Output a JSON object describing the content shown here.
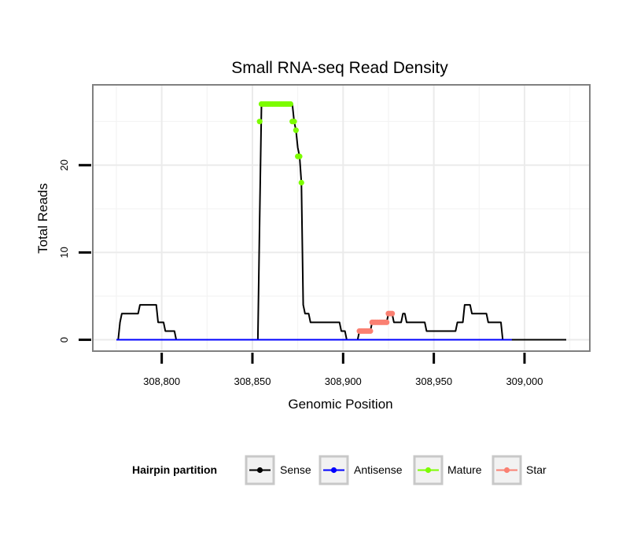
{
  "chart_data": {
    "type": "line",
    "title": "Small RNA-seq Read Density",
    "xlabel": "Genomic Position",
    "ylabel": "Total Reads",
    "xlim": [
      308762,
      309036
    ],
    "ylim": [
      -1.3,
      29.2
    ],
    "x_ticks": [
      308800,
      308850,
      308900,
      308950,
      309000
    ],
    "x_tick_labels": [
      "308,800",
      "308,850",
      "308,900",
      "308,950",
      "309,000"
    ],
    "y_ticks": [
      0,
      10,
      20
    ],
    "y_tick_labels": [
      "0",
      "10",
      "20"
    ],
    "grid": true,
    "legend_position": "bottom",
    "legend": {
      "title": "Hairpin partition",
      "entries": [
        {
          "label": "Sense",
          "color": "#000000"
        },
        {
          "label": "Antisense",
          "color": "#0000ff"
        },
        {
          "label": "Mature",
          "color": "#7cfc00"
        },
        {
          "label": "Star",
          "color": "#fa8072"
        }
      ]
    },
    "series": [
      {
        "name": "Sense",
        "color": "#000000",
        "points": [
          [
            308775,
            0
          ],
          [
            308776,
            0
          ],
          [
            308777,
            2
          ],
          [
            308778,
            3
          ],
          [
            308787,
            3
          ],
          [
            308788,
            4
          ],
          [
            308797,
            4
          ],
          [
            308798,
            2
          ],
          [
            308801,
            2
          ],
          [
            308802,
            1
          ],
          [
            308807,
            1
          ],
          [
            308808,
            0
          ],
          [
            308853,
            0
          ],
          [
            308854,
            14
          ],
          [
            308855,
            27
          ],
          [
            308872,
            27
          ],
          [
            308873,
            25
          ],
          [
            308874,
            24
          ],
          [
            308875,
            22
          ],
          [
            308876,
            21
          ],
          [
            308877,
            18
          ],
          [
            308878,
            4
          ],
          [
            308879,
            3
          ],
          [
            308881,
            3
          ],
          [
            308882,
            2
          ],
          [
            308898,
            2
          ],
          [
            308899,
            1
          ],
          [
            308901,
            1
          ],
          [
            308902,
            0
          ],
          [
            308908,
            0
          ],
          [
            308909,
            1
          ],
          [
            308915,
            1
          ],
          [
            308916,
            2
          ],
          [
            308924,
            2
          ],
          [
            308925,
            3
          ],
          [
            308927,
            3
          ],
          [
            308928,
            2
          ],
          [
            308932,
            2
          ],
          [
            308933,
            3
          ],
          [
            308934,
            3
          ],
          [
            308935,
            2
          ],
          [
            308945,
            2
          ],
          [
            308946,
            1
          ],
          [
            308962,
            1
          ],
          [
            308963,
            2
          ],
          [
            308966,
            2
          ],
          [
            308967,
            4
          ],
          [
            308970,
            4
          ],
          [
            308971,
            3
          ],
          [
            308979,
            3
          ],
          [
            308980,
            2
          ],
          [
            308987,
            2
          ],
          [
            308988,
            0
          ],
          [
            309023,
            0
          ]
        ]
      },
      {
        "name": "Antisense",
        "color": "#0000ff",
        "points": [
          [
            308775,
            0
          ],
          [
            308993,
            0
          ]
        ]
      },
      {
        "name": "Mature",
        "color": "#7cfc00",
        "points": [
          [
            308854,
            25
          ],
          [
            308855,
            27
          ],
          [
            308856,
            27
          ],
          [
            308857,
            27
          ],
          [
            308858,
            27
          ],
          [
            308859,
            27
          ],
          [
            308860,
            27
          ],
          [
            308861,
            27
          ],
          [
            308862,
            27
          ],
          [
            308863,
            27
          ],
          [
            308864,
            27
          ],
          [
            308865,
            27
          ],
          [
            308866,
            27
          ],
          [
            308867,
            27
          ],
          [
            308868,
            27
          ],
          [
            308869,
            27
          ],
          [
            308870,
            27
          ],
          [
            308871,
            27
          ],
          [
            308872,
            25
          ],
          [
            308873,
            25
          ],
          [
            308874,
            24
          ],
          [
            308875,
            21
          ],
          [
            308876,
            21
          ],
          [
            308877,
            18
          ]
        ]
      },
      {
        "name": "Star",
        "color": "#fa8072",
        "points": [
          [
            308909,
            1
          ],
          [
            308910,
            1
          ],
          [
            308911,
            1
          ],
          [
            308912,
            1
          ],
          [
            308913,
            1
          ],
          [
            308914,
            1
          ],
          [
            308915,
            1
          ],
          [
            308916,
            2
          ],
          [
            308917,
            2
          ],
          [
            308918,
            2
          ],
          [
            308919,
            2
          ],
          [
            308920,
            2
          ],
          [
            308921,
            2
          ],
          [
            308922,
            2
          ],
          [
            308923,
            2
          ],
          [
            308924,
            2
          ],
          [
            308925,
            3
          ],
          [
            308926,
            3
          ],
          [
            308927,
            3
          ]
        ]
      }
    ]
  }
}
